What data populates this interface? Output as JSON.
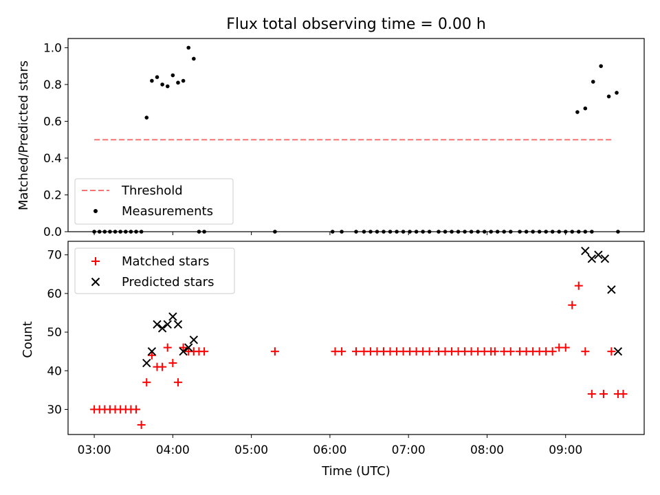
{
  "figure": {
    "title": "Flux total observing time = 0.00 h"
  },
  "chart_data": [
    {
      "type": "scatter",
      "panel": "top",
      "xlabel": "",
      "ylabel": "Matched/Predicted stars",
      "xlim": [
        "02:40",
        "10:00"
      ],
      "ylim": [
        0,
        1.05
      ],
      "yticks": [
        "0.0",
        "0.2",
        "0.4",
        "0.6",
        "0.8",
        "1.0"
      ],
      "grid": false,
      "legend": {
        "position": "lower left",
        "entries": [
          "Threshold",
          "Measurements"
        ]
      },
      "colors": {
        "threshold": "#ff7070",
        "measurements": "#000000"
      },
      "series": [
        {
          "name": "Threshold",
          "style": "dashed-line",
          "x": [
            "03:00",
            "09:37"
          ],
          "y": [
            0.5,
            0.5
          ]
        },
        {
          "name": "Measurements",
          "style": "dot",
          "x": [
            "03:00",
            "03:04",
            "03:08",
            "03:12",
            "03:16",
            "03:20",
            "03:24",
            "03:28",
            "03:32",
            "03:36",
            "03:40",
            "03:44",
            "03:48",
            "03:52",
            "03:56",
            "04:00",
            "04:04",
            "04:08",
            "04:12",
            "04:16",
            "04:20",
            "04:24",
            "05:18",
            "06:02",
            "06:09",
            "06:20",
            "06:26",
            "06:31",
            "06:36",
            "06:41",
            "06:46",
            "06:51",
            "06:56",
            "07:01",
            "07:06",
            "07:11",
            "07:16",
            "07:23",
            "07:28",
            "07:33",
            "07:38",
            "07:43",
            "07:48",
            "07:53",
            "07:58",
            "08:03",
            "08:08",
            "08:13",
            "08:18",
            "08:25",
            "08:30",
            "08:35",
            "08:40",
            "08:45",
            "08:50",
            "08:55",
            "09:00",
            "09:05",
            "09:10",
            "09:15",
            "09:20",
            "09:09",
            "09:15",
            "09:21",
            "09:27",
            "09:33",
            "09:39",
            "09:40"
          ],
          "y": [
            0,
            0,
            0,
            0,
            0,
            0,
            0,
            0,
            0,
            0,
            0.62,
            0.82,
            0.84,
            0.8,
            0.79,
            0.85,
            0.81,
            0.82,
            1.0,
            0.94,
            0,
            0,
            0,
            0,
            0,
            0,
            0,
            0,
            0,
            0,
            0,
            0,
            0,
            0,
            0,
            0,
            0,
            0,
            0,
            0,
            0,
            0,
            0,
            0,
            0,
            0,
            0,
            0,
            0,
            0,
            0,
            0,
            0,
            0,
            0,
            0,
            0,
            0,
            0,
            0,
            0,
            0.65,
            0.67,
            0.815,
            0.9,
            0.735,
            0.755,
            0
          ]
        }
      ]
    },
    {
      "type": "scatter",
      "panel": "bottom",
      "xlabel": "Time (UTC)",
      "ylabel": "Count",
      "xlim": [
        "02:40",
        "10:00"
      ],
      "xticks": [
        "03:00",
        "04:00",
        "05:00",
        "06:00",
        "07:00",
        "08:00",
        "09:00"
      ],
      "ylim": [
        23.5,
        73.5
      ],
      "yticks": [
        "30",
        "40",
        "50",
        "60",
        "70"
      ],
      "grid": false,
      "legend": {
        "position": "upper left",
        "entries": [
          "Matched stars",
          "Predicted stars"
        ]
      },
      "colors": {
        "matched": "#ff0000",
        "predicted": "#000000"
      },
      "series": [
        {
          "name": "Matched stars",
          "marker": "plus",
          "x": [
            "03:00",
            "03:04",
            "03:08",
            "03:12",
            "03:16",
            "03:20",
            "03:24",
            "03:28",
            "03:32",
            "03:36",
            "03:40",
            "03:44",
            "03:48",
            "03:52",
            "03:56",
            "04:00",
            "04:04",
            "04:08",
            "04:12",
            "04:16",
            "04:20",
            "04:24",
            "05:18",
            "06:04",
            "06:09",
            "06:20",
            "06:26",
            "06:31",
            "06:36",
            "06:41",
            "06:46",
            "06:51",
            "06:56",
            "07:01",
            "07:06",
            "07:11",
            "07:16",
            "07:23",
            "07:28",
            "07:33",
            "07:38",
            "07:43",
            "07:48",
            "07:53",
            "07:58",
            "08:03",
            "08:06",
            "08:13",
            "08:18",
            "08:25",
            "08:30",
            "08:35",
            "08:40",
            "08:45",
            "08:50",
            "08:55",
            "09:00",
            "09:05",
            "09:10",
            "09:15",
            "09:20",
            "09:29",
            "09:35",
            "09:40",
            "09:44"
          ],
          "y": [
            30,
            30,
            30,
            30,
            30,
            30,
            30,
            30,
            30,
            26,
            37,
            44,
            41,
            41,
            46,
            42,
            37,
            46,
            45,
            45,
            45,
            45,
            45,
            45,
            45,
            45,
            45,
            45,
            45,
            45,
            45,
            45,
            45,
            45,
            45,
            45,
            45,
            45,
            45,
            45,
            45,
            45,
            45,
            45,
            45,
            45,
            45,
            45,
            45,
            45,
            45,
            45,
            45,
            45,
            45,
            46,
            46,
            57,
            62,
            45,
            34,
            34,
            45,
            34,
            34
          ]
        },
        {
          "name": "Predicted stars",
          "marker": "x",
          "x": [
            "03:40",
            "03:44",
            "03:48",
            "03:52",
            "03:56",
            "04:00",
            "04:04",
            "04:08",
            "04:12",
            "04:16",
            "09:15",
            "09:20",
            "09:25",
            "09:30",
            "09:35",
            "09:40"
          ],
          "y": [
            42,
            45,
            52,
            51,
            52,
            54,
            52,
            45,
            46,
            48,
            71,
            69,
            70,
            69,
            61,
            45
          ]
        }
      ]
    }
  ]
}
